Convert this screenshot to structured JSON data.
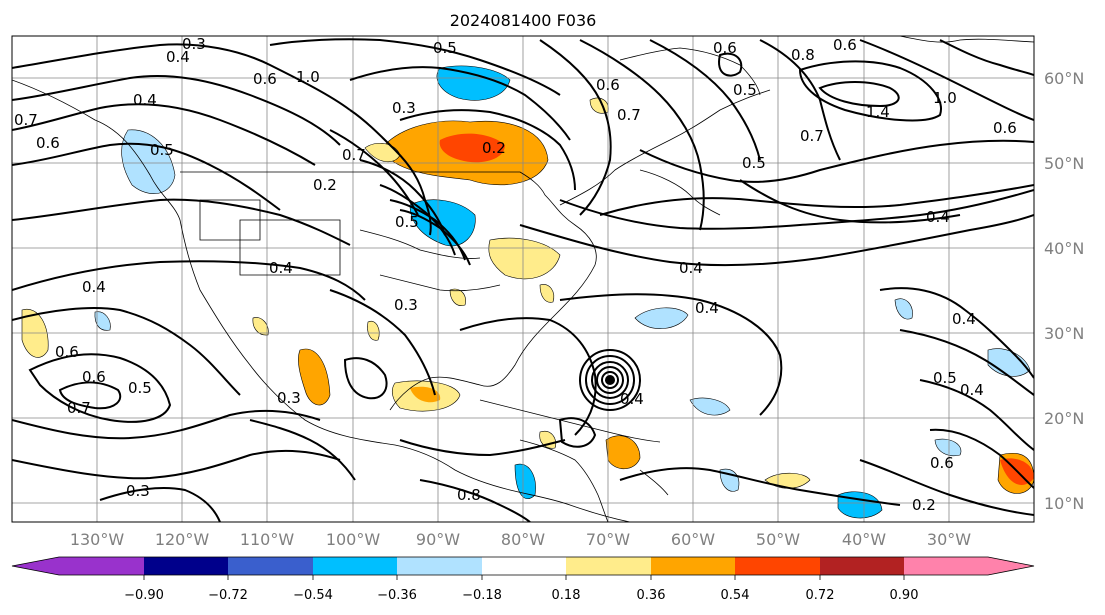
{
  "title": "2024081400 F036",
  "lon_labels": [
    "130°W",
    "120°W",
    "110°W",
    "100°W",
    "90°W",
    "80°W",
    "70°W",
    "60°W",
    "50°W",
    "40°W",
    "30°W"
  ],
  "lat_labels": [
    "60°N",
    "50°N",
    "40°N",
    "30°N",
    "20°N",
    "10°N"
  ],
  "colorbar": {
    "ticks": [
      "−0.90",
      "−0.72",
      "−0.54",
      "−0.36",
      "−0.18",
      "0.18",
      "0.36",
      "0.54",
      "0.72",
      "0.90"
    ],
    "colors": [
      "#9932cc",
      "#00008b",
      "#3a5fcd",
      "#00bfff",
      "#b0e2ff",
      "#ffffff",
      "#ffec8b",
      "#ffa500",
      "#ff4500",
      "#b22222",
      "#ff82ab"
    ]
  },
  "contour_labels": [
    "0.3",
    "0.4",
    "0.5",
    "0.6",
    "1.0",
    "0.4",
    "0.7",
    "0.6",
    "0.5",
    "0.7",
    "0.2",
    "0.3",
    "0.2",
    "0.6",
    "0.4",
    "0.4",
    "0.4",
    "0.4",
    "0.8",
    "0.6",
    "0.6",
    "0.5",
    "1.0",
    "0.7",
    "1.4",
    "0.6",
    "0.5",
    "0.7",
    "0.4",
    "0.4",
    "0.5",
    "0.6",
    "0.4",
    "0.3",
    "0.6",
    "0.7",
    "0.5",
    "0.3",
    "0.3",
    "0.8",
    "0.5",
    "0.4",
    "0.2",
    "0.6"
  ]
}
